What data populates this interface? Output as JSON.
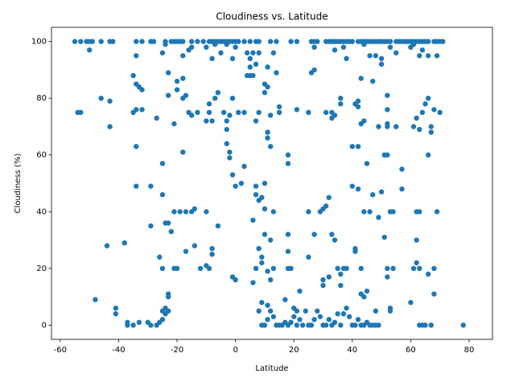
{
  "chart_data": {
    "type": "scatter",
    "title": "Cloudiness vs. Latitude",
    "x_label": "Latitude",
    "y_label": "Cloudiness (%)",
    "color": "#1f77b4",
    "xlim": [
      -63,
      88
    ],
    "ylim": [
      -5,
      105
    ],
    "xticks": [
      -60,
      -40,
      -20,
      0,
      20,
      40,
      60,
      80
    ],
    "yticks": [
      0,
      20,
      40,
      60,
      80,
      100
    ],
    "x": [
      -55,
      -53,
      -51,
      -50,
      -49,
      -46,
      -43,
      -42,
      -34,
      -32,
      -29,
      -28,
      -24,
      -22,
      -21,
      -20,
      -19,
      -18,
      -15,
      -13,
      -11,
      -9,
      -8,
      -7,
      -6,
      -5,
      -4,
      -3,
      -2,
      -1,
      0,
      1,
      3,
      5,
      7,
      8,
      12,
      14,
      19,
      21,
      26,
      27,
      28,
      31,
      32,
      33,
      34,
      35,
      36,
      37,
      38,
      39,
      40,
      42,
      43,
      44,
      45,
      46,
      47,
      48,
      49,
      50,
      51,
      52,
      53,
      55,
      56,
      57,
      58,
      59,
      60,
      61,
      62,
      63,
      64,
      66,
      68,
      69,
      70,
      71,
      -50,
      -34,
      -25,
      -24,
      -18,
      -16,
      -15,
      -10,
      -8,
      -7,
      -5,
      -3,
      -1,
      0,
      4,
      5,
      6,
      7,
      8,
      13,
      27,
      34,
      37,
      38,
      44,
      46,
      48,
      50,
      50,
      53,
      55,
      60,
      61,
      63,
      64,
      65,
      66,
      69,
      -54,
      -53,
      -46,
      -43,
      -43,
      -35,
      -34,
      -33,
      -32,
      -34,
      -32,
      -35,
      -27,
      -23,
      -23,
      -21,
      -20,
      -20,
      -18,
      -18,
      -17,
      -16,
      -15,
      -13,
      -10,
      -9,
      -9,
      -8,
      -7,
      -6,
      -4,
      -3,
      -1,
      -2,
      1,
      3,
      4,
      5,
      5,
      6,
      7,
      8,
      10,
      10,
      11,
      11,
      12,
      14,
      15,
      15,
      21,
      25,
      26,
      27,
      31,
      33,
      33,
      34,
      36,
      36,
      41,
      42,
      42,
      43,
      43,
      44,
      47,
      49,
      52,
      52,
      52,
      52,
      55,
      61,
      62,
      63,
      64,
      65,
      66,
      67,
      67,
      68,
      70,
      -34,
      -25,
      -25,
      -22,
      -23,
      -21,
      -19,
      -18,
      -17,
      -15,
      -14,
      -10,
      -6,
      -3,
      -3,
      -2,
      -2,
      -1,
      0,
      2,
      3,
      6,
      7,
      7,
      8,
      9,
      10,
      10,
      11,
      11,
      12,
      13,
      18,
      18,
      25,
      29,
      30,
      31,
      32,
      40,
      40,
      42,
      42,
      44,
      45,
      46,
      47,
      49,
      50,
      51,
      52,
      53,
      54,
      57,
      57,
      62,
      63,
      66,
      69,
      -44,
      -38,
      -34,
      -29,
      -29,
      -26,
      -25,
      -24,
      -23,
      -23,
      -21,
      -20,
      -17,
      -14,
      -12,
      -10,
      -9,
      -8,
      -8,
      -1,
      0,
      6,
      7,
      8,
      9,
      9,
      10,
      11,
      12,
      12,
      13,
      17,
      18,
      18,
      18,
      19,
      20,
      22,
      25,
      27,
      30,
      30,
      32,
      33,
      34,
      35,
      36,
      36,
      37,
      38,
      41,
      41,
      43,
      43,
      45,
      44,
      48,
      51,
      52,
      52,
      53,
      54,
      60,
      61,
      62,
      62,
      63,
      66,
      68,
      68,
      -48,
      -41,
      -41,
      -37,
      -37,
      -35,
      -33,
      -30,
      -29,
      -27,
      -26,
      -25,
      -25,
      -24,
      -24,
      -23,
      8,
      9,
      9,
      10,
      11,
      11,
      12,
      13,
      14,
      15,
      16,
      17,
      18,
      19,
      20,
      21,
      21,
      22,
      23,
      24,
      25,
      26,
      27,
      28,
      29,
      30,
      31,
      32,
      33,
      34,
      35,
      36,
      37,
      38,
      39,
      40,
      41,
      42,
      43,
      44,
      45,
      46,
      47,
      48,
      49,
      53,
      63,
      64,
      65,
      67,
      78
    ],
    "y": [
      100,
      100,
      100,
      100,
      100,
      100,
      100,
      100,
      100,
      100,
      100,
      100,
      100,
      100,
      100,
      100,
      100,
      100,
      100,
      100,
      100,
      100,
      100,
      100,
      100,
      100,
      100,
      100,
      100,
      100,
      100,
      100,
      100,
      100,
      100,
      100,
      100,
      100,
      100,
      100,
      100,
      100,
      100,
      100,
      100,
      100,
      100,
      100,
      100,
      100,
      100,
      100,
      100,
      100,
      100,
      100,
      100,
      100,
      100,
      100,
      100,
      100,
      100,
      100,
      100,
      100,
      100,
      100,
      100,
      100,
      100,
      100,
      100,
      100,
      100,
      100,
      100,
      100,
      100,
      100,
      97,
      95,
      96,
      99,
      95,
      97,
      98,
      98,
      94,
      99,
      96,
      99,
      94,
      98,
      96,
      94,
      96,
      92,
      96,
      96,
      98,
      97,
      98,
      94,
      99,
      95,
      95,
      94,
      92,
      98,
      96,
      98,
      99,
      95,
      97,
      100,
      95,
      95,
      75,
      75,
      80,
      79,
      70,
      88,
      85,
      84,
      83,
      76,
      76,
      75,
      73,
      81,
      89,
      71,
      86,
      83,
      87,
      80,
      81,
      75,
      74,
      75,
      72,
      78,
      75,
      72,
      80,
      82,
      75,
      72,
      80,
      74,
      75,
      75,
      88,
      88,
      91,
      88,
      72,
      75,
      85,
      82,
      84,
      91,
      74,
      89,
      77,
      75,
      76,
      75,
      89,
      90,
      75,
      75,
      73,
      74,
      80,
      78,
      78,
      79,
      77,
      87,
      71,
      72,
      86,
      70,
      81,
      76,
      71,
      70,
      70,
      70,
      73,
      69,
      75,
      78,
      80,
      70,
      68,
      76,
      75,
      63,
      57,
      46,
      33,
      36,
      40,
      40,
      61,
      40,
      40,
      41,
      40,
      35,
      64,
      69,
      61,
      59,
      53,
      49,
      50,
      56,
      37,
      49,
      46,
      44,
      45,
      50,
      41,
      66,
      68,
      63,
      40,
      60,
      57,
      40,
      40,
      41,
      42,
      45,
      63,
      49,
      63,
      48,
      40,
      57,
      40,
      46,
      38,
      47,
      60,
      60,
      40,
      40,
      55,
      48,
      40,
      40,
      60,
      40,
      28,
      29,
      49,
      35,
      49,
      24,
      20,
      36,
      11,
      10,
      20,
      20,
      26,
      28,
      20,
      21,
      20,
      25,
      27,
      17,
      16,
      15,
      20,
      27,
      24,
      22,
      32,
      19,
      30,
      16,
      20,
      9,
      26,
      32,
      20,
      20,
      6,
      12,
      24,
      32,
      14,
      16,
      17,
      32,
      30,
      20,
      18,
      14,
      20,
      20,
      27,
      26,
      20,
      11,
      12,
      10,
      5,
      31,
      20,
      17,
      5,
      20,
      8,
      20,
      22,
      30,
      20,
      18,
      20,
      11,
      9,
      6,
      4,
      0,
      1,
      0,
      1,
      1,
      0,
      0,
      1,
      2,
      5,
      6,
      4,
      5,
      5,
      8,
      0,
      0,
      2,
      7,
      5,
      3,
      0,
      0,
      0,
      1,
      0,
      1,
      3,
      5,
      0,
      2,
      0,
      5,
      0,
      0,
      2,
      5,
      3,
      0,
      0,
      2,
      0,
      1,
      4,
      0,
      4,
      6,
      3,
      0,
      0,
      2,
      0,
      0,
      1,
      0,
      0,
      0,
      0,
      6,
      0,
      0,
      0,
      0,
      0
    ]
  }
}
